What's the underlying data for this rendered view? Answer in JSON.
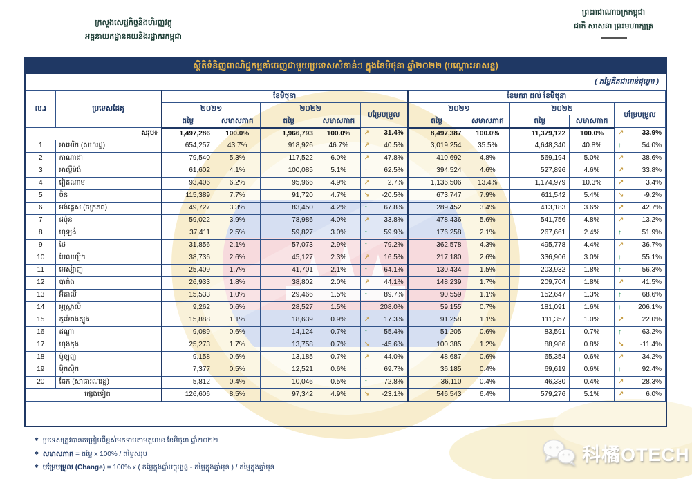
{
  "page_header": {
    "left_line1": "ក្រសួងសេដ្ឋកិច្ចនិងហិរញ្ញវត្ថុ",
    "left_line2": "អគ្គនាយកដ្ឋានគយនិងរដ្ឋាករកម្ពុជា",
    "right_line1": "ព្រះរាជាណាចក្រកម្ពុជា",
    "right_line2": "ជាតិ សាសនា ព្រះមហាក្សត្រ"
  },
  "report": {
    "title": "ស្ថិតិទំនិញពាណិជ្ជកម្មនាំចេញជាមួយប្រទេសសំខាន់ៗ ក្នុងខែមិថុនា ឆ្នាំ២០២២ (បណ្ដោះអាសន្ន)",
    "unit_note": "( តម្លៃគិតជាពាន់ដុល្លារ )"
  },
  "table": {
    "headers": {
      "no": "ល.រ",
      "country": "ប្រទេសដៃគូ",
      "period_june": "ខែមិថុនា",
      "period_jan_june": "ខែមករា ដល់ ខែមិថុនា",
      "year_2021": "២០២១",
      "year_2022": "២០២២",
      "value": "តម្លៃ",
      "share": "សមាសភាគ",
      "change": "បម្រែបម្រួល"
    },
    "trend_icons": {
      "up": "green-up-arrow",
      "ne": "gold-rise-arrow",
      "se": "gold-fall-arrow"
    },
    "total_row": {
      "label": "សរុប៖",
      "june": {
        "v21": "1,497,286",
        "s21": "100.0%",
        "v22": "1,966,793",
        "s22": "100.0%",
        "chg": "31.4%",
        "trend": "ne"
      },
      "jan_jun": {
        "v21": "8,497,387",
        "s21": "100.0%",
        "v22": "11,379,122",
        "s22": "100.0%",
        "chg": "33.9%",
        "trend": "ne"
      }
    },
    "rows": [
      {
        "no": "1",
        "country": "អាមេរិក (សហរដ្ឋ)",
        "june": {
          "v21": "654,257",
          "s21": "43.7%",
          "v22": "918,926",
          "s22": "46.7%",
          "chg": "40.5%",
          "trend": "ne"
        },
        "jan_jun": {
          "v21": "3,019,254",
          "s21": "35.5%",
          "v22": "4,648,340",
          "s22": "40.8%",
          "chg": "54.0%",
          "trend": "up"
        }
      },
      {
        "no": "2",
        "country": "កាណាដា",
        "june": {
          "v21": "79,540",
          "s21": "5.3%",
          "v22": "117,522",
          "s22": "6.0%",
          "chg": "47.8%",
          "trend": "ne"
        },
        "jan_jun": {
          "v21": "410,692",
          "s21": "4.8%",
          "v22": "569,194",
          "s22": "5.0%",
          "chg": "38.6%",
          "trend": "ne"
        }
      },
      {
        "no": "3",
        "country": "អាល្លឺម៉ង់",
        "june": {
          "v21": "61,602",
          "s21": "4.1%",
          "v22": "100,085",
          "s22": "5.1%",
          "chg": "62.5%",
          "trend": "up"
        },
        "jan_jun": {
          "v21": "394,524",
          "s21": "4.6%",
          "v22": "527,896",
          "s22": "4.6%",
          "chg": "33.8%",
          "trend": "ne"
        }
      },
      {
        "no": "4",
        "country": "វៀតណាម",
        "june": {
          "v21": "93,406",
          "s21": "6.2%",
          "v22": "95,966",
          "s22": "4.9%",
          "chg": "2.7%",
          "trend": "ne"
        },
        "jan_jun": {
          "v21": "1,136,506",
          "s21": "13.4%",
          "v22": "1,174,979",
          "s22": "10.3%",
          "chg": "3.4%",
          "trend": "ne"
        }
      },
      {
        "no": "5",
        "country": "ចិន",
        "june": {
          "v21": "115,389",
          "s21": "7.7%",
          "v22": "91,720",
          "s22": "4.7%",
          "chg": "-20.5%",
          "trend": "se"
        },
        "jan_jun": {
          "v21": "673,747",
          "s21": "7.9%",
          "v22": "611,542",
          "s22": "5.4%",
          "chg": "-9.2%",
          "trend": "se"
        }
      },
      {
        "no": "6",
        "country": "អង់គ្លេស (ចក្រភព)",
        "june": {
          "v21": "49,727",
          "s21": "3.3%",
          "v22": "83,450",
          "s22": "4.2%",
          "chg": "67.8%",
          "trend": "up"
        },
        "jan_jun": {
          "v21": "289,452",
          "s21": "3.4%",
          "v22": "413,183",
          "s22": "3.6%",
          "chg": "42.7%",
          "trend": "ne"
        }
      },
      {
        "no": "7",
        "country": "ជប៉ុន",
        "june": {
          "v21": "59,022",
          "s21": "3.9%",
          "v22": "78,986",
          "s22": "4.0%",
          "chg": "33.8%",
          "trend": "ne"
        },
        "jan_jun": {
          "v21": "478,436",
          "s21": "5.6%",
          "v22": "541,756",
          "s22": "4.8%",
          "chg": "13.2%",
          "trend": "ne"
        }
      },
      {
        "no": "8",
        "country": "ហុឡង់",
        "june": {
          "v21": "37,411",
          "s21": "2.5%",
          "v22": "59,827",
          "s22": "3.0%",
          "chg": "59.9%",
          "trend": "up"
        },
        "jan_jun": {
          "v21": "176,258",
          "s21": "2.1%",
          "v22": "267,661",
          "s22": "2.4%",
          "chg": "51.9%",
          "trend": "up"
        }
      },
      {
        "no": "9",
        "country": "ថៃ",
        "june": {
          "v21": "31,856",
          "s21": "2.1%",
          "v22": "57,073",
          "s22": "2.9%",
          "chg": "79.2%",
          "trend": "up"
        },
        "jan_jun": {
          "v21": "362,578",
          "s21": "4.3%",
          "v22": "495,778",
          "s22": "4.4%",
          "chg": "36.7%",
          "trend": "ne"
        }
      },
      {
        "no": "10",
        "country": "បែលហ្ស៊ិក",
        "june": {
          "v21": "38,736",
          "s21": "2.6%",
          "v22": "45,127",
          "s22": "2.3%",
          "chg": "16.5%",
          "trend": "ne"
        },
        "jan_jun": {
          "v21": "217,180",
          "s21": "2.6%",
          "v22": "336,906",
          "s22": "3.0%",
          "chg": "55.1%",
          "trend": "up"
        }
      },
      {
        "no": "11",
        "country": "អេស្ប៉ាញ",
        "june": {
          "v21": "25,409",
          "s21": "1.7%",
          "v22": "41,701",
          "s22": "2.1%",
          "chg": "64.1%",
          "trend": "up"
        },
        "jan_jun": {
          "v21": "130,434",
          "s21": "1.5%",
          "v22": "203,932",
          "s22": "1.8%",
          "chg": "56.3%",
          "trend": "up"
        }
      },
      {
        "no": "12",
        "country": "បារាំង",
        "june": {
          "v21": "26,933",
          "s21": "1.8%",
          "v22": "38,802",
          "s22": "2.0%",
          "chg": "44.1%",
          "trend": "ne"
        },
        "jan_jun": {
          "v21": "148,239",
          "s21": "1.7%",
          "v22": "209,704",
          "s22": "1.8%",
          "chg": "41.5%",
          "trend": "ne"
        }
      },
      {
        "no": "13",
        "country": "អ៊ីតាលី",
        "june": {
          "v21": "15,533",
          "s21": "1.0%",
          "v22": "29,466",
          "s22": "1.5%",
          "chg": "89.7%",
          "trend": "up"
        },
        "jan_jun": {
          "v21": "90,559",
          "s21": "1.1%",
          "v22": "152,647",
          "s22": "1.3%",
          "chg": "68.6%",
          "trend": "up"
        }
      },
      {
        "no": "14",
        "country": "អូស្ត្រាលី",
        "june": {
          "v21": "9,262",
          "s21": "0.6%",
          "v22": "28,527",
          "s22": "1.5%",
          "chg": "208.0%",
          "trend": "up"
        },
        "jan_jun": {
          "v21": "59,155",
          "s21": "0.7%",
          "v22": "181,091",
          "s22": "1.6%",
          "chg": "206.1%",
          "trend": "up"
        }
      },
      {
        "no": "15",
        "country": "កូរ៉េខាងត្បូង",
        "june": {
          "v21": "15,888",
          "s21": "1.1%",
          "v22": "18,639",
          "s22": "0.9%",
          "chg": "17.3%",
          "trend": "ne"
        },
        "jan_jun": {
          "v21": "91,258",
          "s21": "1.1%",
          "v22": "111,357",
          "s22": "1.0%",
          "chg": "22.0%",
          "trend": "ne"
        }
      },
      {
        "no": "16",
        "country": "ឥណ្ឌា",
        "june": {
          "v21": "9,089",
          "s21": "0.6%",
          "v22": "14,124",
          "s22": "0.7%",
          "chg": "55.4%",
          "trend": "up"
        },
        "jan_jun": {
          "v21": "51,205",
          "s21": "0.6%",
          "v22": "83,591",
          "s22": "0.7%",
          "chg": "63.2%",
          "trend": "up"
        }
      },
      {
        "no": "17",
        "country": "ហុងកុង",
        "june": {
          "v21": "25,273",
          "s21": "1.7%",
          "v22": "13,758",
          "s22": "0.7%",
          "chg": "-45.6%",
          "trend": "se"
        },
        "jan_jun": {
          "v21": "100,385",
          "s21": "1.2%",
          "v22": "88,986",
          "s22": "0.8%",
          "chg": "-11.4%",
          "trend": "se"
        }
      },
      {
        "no": "18",
        "country": "ប៉ូឡូញ",
        "june": {
          "v21": "9,158",
          "s21": "0.6%",
          "v22": "13,185",
          "s22": "0.7%",
          "chg": "44.0%",
          "trend": "ne"
        },
        "jan_jun": {
          "v21": "48,687",
          "s21": "0.6%",
          "v22": "65,354",
          "s22": "0.6%",
          "chg": "34.2%",
          "trend": "ne"
        }
      },
      {
        "no": "19",
        "country": "ម៉ិកស៊ិក",
        "june": {
          "v21": "7,377",
          "s21": "0.5%",
          "v22": "12,521",
          "s22": "0.6%",
          "chg": "69.7%",
          "trend": "up"
        },
        "jan_jun": {
          "v21": "36,185",
          "s21": "0.4%",
          "v22": "69,619",
          "s22": "0.6%",
          "chg": "92.4%",
          "trend": "up"
        }
      },
      {
        "no": "20",
        "country": "ឆែក (សាធារណរដ្ឋ)",
        "june": {
          "v21": "5,812",
          "s21": "0.4%",
          "v22": "10,046",
          "s22": "0.5%",
          "chg": "72.8%",
          "trend": "up"
        },
        "jan_jun": {
          "v21": "36,110",
          "s21": "0.4%",
          "v22": "46,330",
          "s22": "0.4%",
          "chg": "28.3%",
          "trend": "ne"
        }
      }
    ],
    "others_row": {
      "label": "ផ្សេងទៀត",
      "june": {
        "v21": "126,606",
        "s21": "8.5%",
        "v22": "97,342",
        "s22": "4.9%",
        "chg": "-23.1%",
        "trend": "se"
      },
      "jan_jun": {
        "v21": "546,543",
        "s21": "6.4%",
        "v22": "579,276",
        "s22": "5.1%",
        "chg": "6.0%",
        "trend": "ne"
      }
    }
  },
  "footnotes": [
    {
      "term": "",
      "text": "ប្រទេសត្រូវបានតម្រៀបពីខ្ពស់មកទាបតាមតួលេខ ខែមិថុនា ឆ្នាំ២០២២"
    },
    {
      "term": "សមាសភាគ",
      "text": " =  តម្លៃ  x 100% / តម្លៃសរុប"
    },
    {
      "term": "បម្រែបម្រួល (Change)",
      "text": " =  100% x (  តម្លៃក្នុងឆ្នាំបច្ចុប្បន្ន - តម្លៃក្នុងឆ្នាំមុន ) / តម្លៃក្នុងឆ្នាំមុន"
    }
  ],
  "brand_watermark": {
    "text": "科橘OTECH"
  },
  "colors": {
    "navy": "#1f3864",
    "title_gold": "#e7b54b",
    "arrow_gold": "#c49b42",
    "arrow_green": "#2f9a5d"
  }
}
